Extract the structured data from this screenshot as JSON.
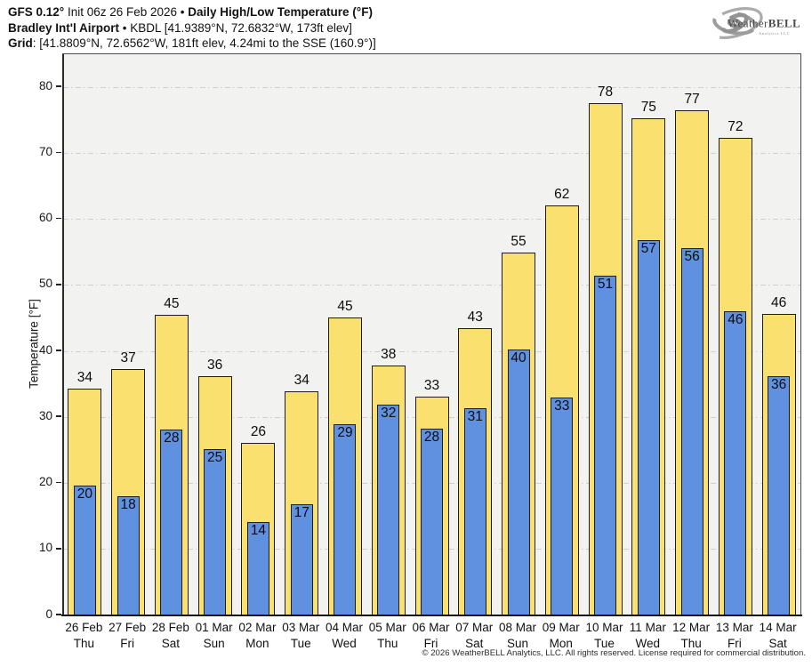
{
  "header": {
    "model_bold": "GFS 0.12°",
    "init_text": " Init 06z 26 Feb 2026 • ",
    "product_bold": "Daily High/Low Temperature (°F)",
    "station_bold": "Bradley Int'l Airport",
    "station_rest": " • KBDL [41.9389°N, 72.6832°W, 173ft elev]",
    "grid_bold": "Grid",
    "grid_rest": ": [41.8809°N, 72.6562°W, 181ft elev, 4.24mi to the SSE (160.9°)]"
  },
  "logo": {
    "text_a": "Weather",
    "text_b": "BELL",
    "subtext": "Analytics LLC"
  },
  "footer": {
    "copyright": "© 2026 WeatherBELL Analytics, LLC. All rights reserved. License required for commercial distribution."
  },
  "chart_data": {
    "type": "bar",
    "title": "Daily High/Low Temperature (°F)",
    "ylabel": "Temperature [°F]",
    "ylim": [
      0,
      85
    ],
    "ytick_step": 10,
    "ytick_max": 80,
    "grid": true,
    "legend_position": "none",
    "categories": [
      "26 Feb",
      "27 Feb",
      "28 Feb",
      "01 Mar",
      "02 Mar",
      "03 Mar",
      "04 Mar",
      "05 Mar",
      "06 Mar",
      "07 Mar",
      "08 Mar",
      "09 Mar",
      "10 Mar",
      "11 Mar",
      "12 Mar",
      "13 Mar",
      "14 Mar"
    ],
    "weekdays": [
      "Thu",
      "Fri",
      "Sat",
      "Sun",
      "Mon",
      "Tue",
      "Wed",
      "Thu",
      "Fri",
      "Sat",
      "Sun",
      "Mon",
      "Tue",
      "Wed",
      "Thu",
      "Fri",
      "Sat"
    ],
    "series": [
      {
        "name": "Daily High",
        "color": "#fae06e",
        "label_values": [
          34,
          37,
          45,
          36,
          26,
          34,
          45,
          38,
          33,
          43,
          55,
          62,
          78,
          75,
          77,
          72,
          46
        ],
        "bar_values": [
          34.3,
          37.3,
          45.5,
          36.2,
          26.2,
          34.0,
          45.1,
          37.9,
          33.2,
          43.5,
          55.0,
          62.1,
          77.6,
          75.3,
          76.5,
          72.4,
          45.7
        ]
      },
      {
        "name": "Daily Low",
        "color": "#6090e0",
        "label_values": [
          20,
          18,
          28,
          25,
          14,
          17,
          29,
          32,
          28,
          31,
          40,
          33,
          51,
          57,
          56,
          46,
          36
        ],
        "bar_values": [
          19.6,
          18.0,
          28.1,
          25.2,
          14.1,
          16.9,
          28.9,
          31.9,
          28.3,
          31.4,
          40.3,
          33.0,
          51.4,
          56.9,
          55.6,
          46.1,
          36.2
        ]
      }
    ],
    "colors": {
      "high_fill": "#fae06e",
      "low_fill": "#6090e0",
      "bar_border": "#1d1d1d",
      "plot_bg": "#f2f2f1",
      "gridline": "#cfcfcf"
    }
  }
}
